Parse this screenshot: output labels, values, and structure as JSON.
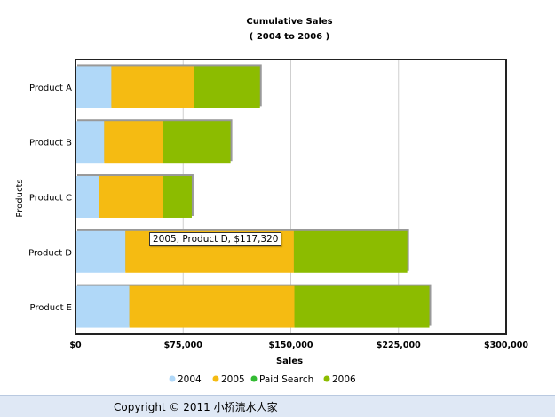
{
  "chart_data": {
    "type": "bar",
    "orientation": "horizontal",
    "stacked": true,
    "title": "Cumulative Sales",
    "subtitle": "( 2004 to 2006 )",
    "xlabel": "Sales",
    "ylabel": "Products",
    "xlim": [
      0,
      300000
    ],
    "xticks": [
      "$0",
      "$75,000",
      "$150,000",
      "$225,000",
      "$300,000"
    ],
    "xtick_values": [
      0,
      75000,
      150000,
      225000,
      300000
    ],
    "categories": [
      "Product A",
      "Product B",
      "Product C",
      "Product D",
      "Product E"
    ],
    "series": [
      {
        "name": "2004",
        "color": "#b0d8f8",
        "values": [
          25000,
          20000,
          16500,
          34800,
          37500
        ]
      },
      {
        "name": "2005",
        "color": "#f5bb12",
        "values": [
          57500,
          41000,
          44500,
          117320,
          115000
        ]
      },
      {
        "name": "Paid Search",
        "color": "#33bb33",
        "values": [
          0,
          0,
          0,
          0,
          0
        ]
      },
      {
        "name": "2006",
        "color": "#8cbc00",
        "values": [
          46000,
          47000,
          20000,
          79000,
          94000
        ]
      }
    ],
    "grid": true,
    "legend": "bottom"
  },
  "tooltip": {
    "text": "2005, Product D, $117,320"
  },
  "footer": {
    "text": "Copyright © 2011 小桥流水人家"
  }
}
